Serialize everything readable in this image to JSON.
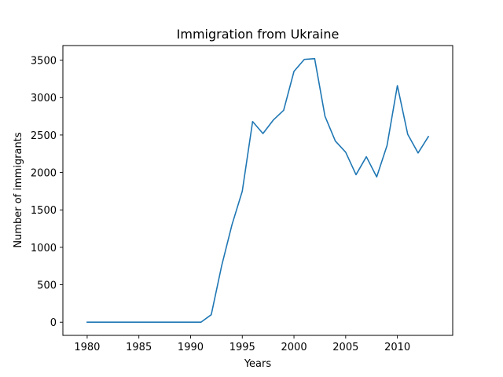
{
  "chart_data": {
    "type": "line",
    "title": "Immigration from Ukraine",
    "xlabel": "Years",
    "ylabel": "Number of immigrants",
    "xlim": [
      1977.65,
      2015.35
    ],
    "ylim": [
      -175.95,
      3694.95
    ],
    "xticks": [
      1980,
      1985,
      1990,
      1995,
      2000,
      2005,
      2010
    ],
    "yticks": [
      0,
      500,
      1000,
      1500,
      2000,
      2500,
      3000,
      3500
    ],
    "grid": false,
    "color": "#1f77b4",
    "x": [
      1980,
      1981,
      1982,
      1983,
      1984,
      1985,
      1986,
      1987,
      1988,
      1989,
      1990,
      1991,
      1992,
      1993,
      1994,
      1995,
      1996,
      1997,
      1998,
      1999,
      2000,
      2001,
      2002,
      2003,
      2004,
      2005,
      2006,
      2007,
      2008,
      2009,
      2010,
      2011,
      2012,
      2013
    ],
    "y": [
      0,
      0,
      0,
      0,
      0,
      0,
      0,
      0,
      0,
      0,
      0,
      0,
      100,
      750,
      1300,
      1750,
      2680,
      2520,
      2700,
      2830,
      3350,
      3510,
      3520,
      2750,
      2420,
      2270,
      1970,
      2210,
      1940,
      2360,
      3160,
      2510,
      2260,
      2480
    ]
  }
}
